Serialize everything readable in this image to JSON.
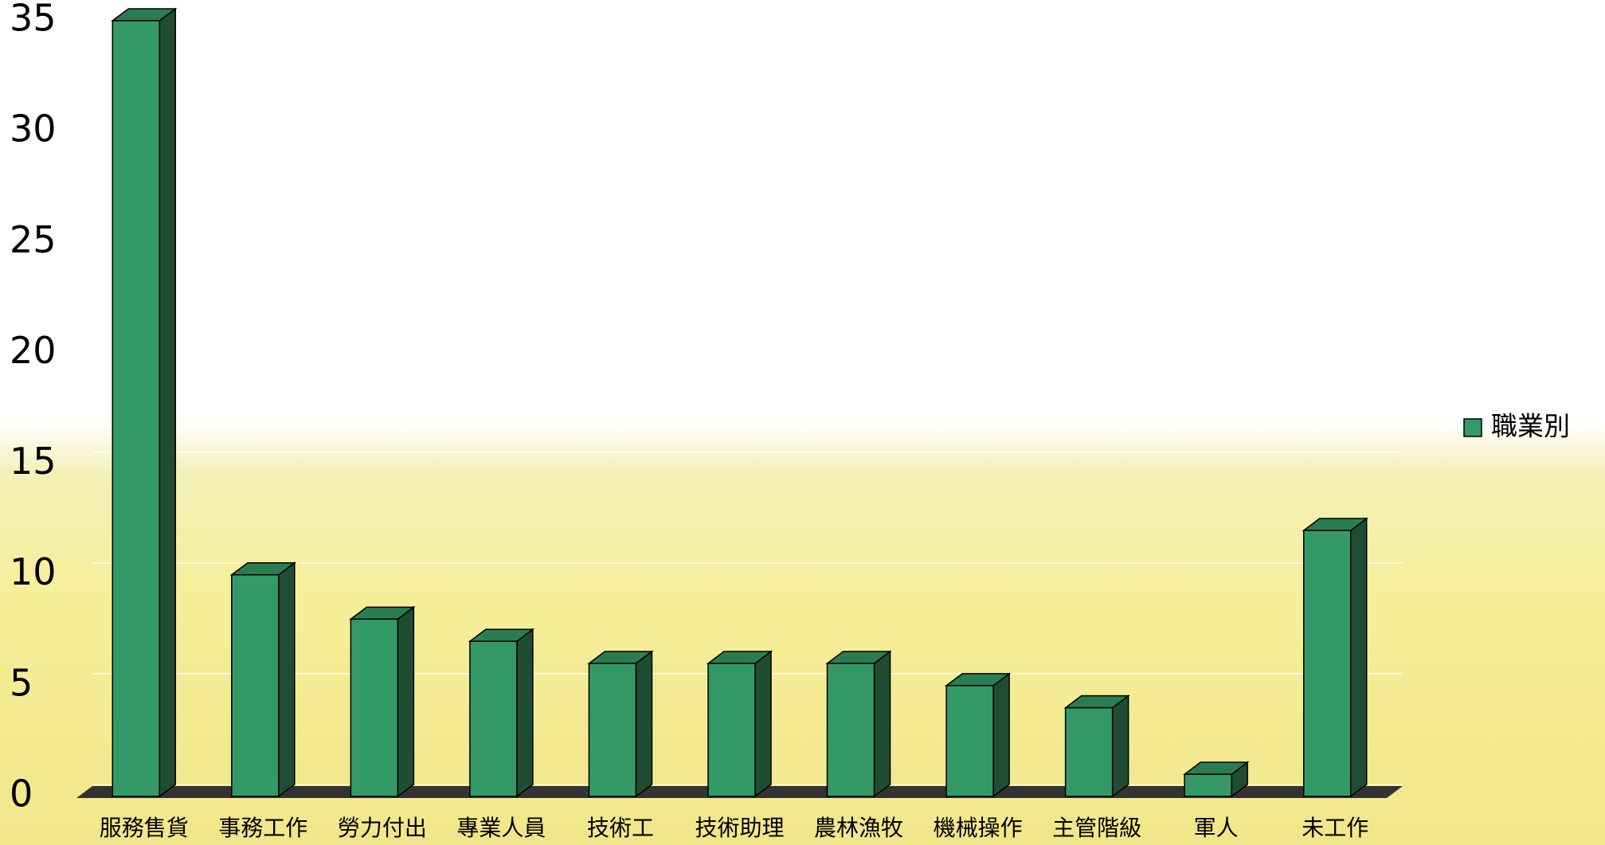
{
  "chart_data": {
    "type": "bar3d",
    "categories": [
      "服務售貨",
      "事務工作",
      "勞力付出",
      "專業人員",
      "技術工",
      "技術助理",
      "農林漁牧",
      "機械操作",
      "主管階級",
      "軍人",
      "未工作"
    ],
    "series": [
      {
        "name": "職業別",
        "color": "#339966",
        "values": [
          35,
          10,
          8,
          7,
          6,
          6,
          6,
          5,
          4,
          1,
          12
        ]
      }
    ],
    "ylim": [
      0,
      35
    ],
    "yticks": [
      0,
      5,
      10,
      15,
      20,
      25,
      30,
      35
    ],
    "grid": true,
    "legend": "right"
  }
}
